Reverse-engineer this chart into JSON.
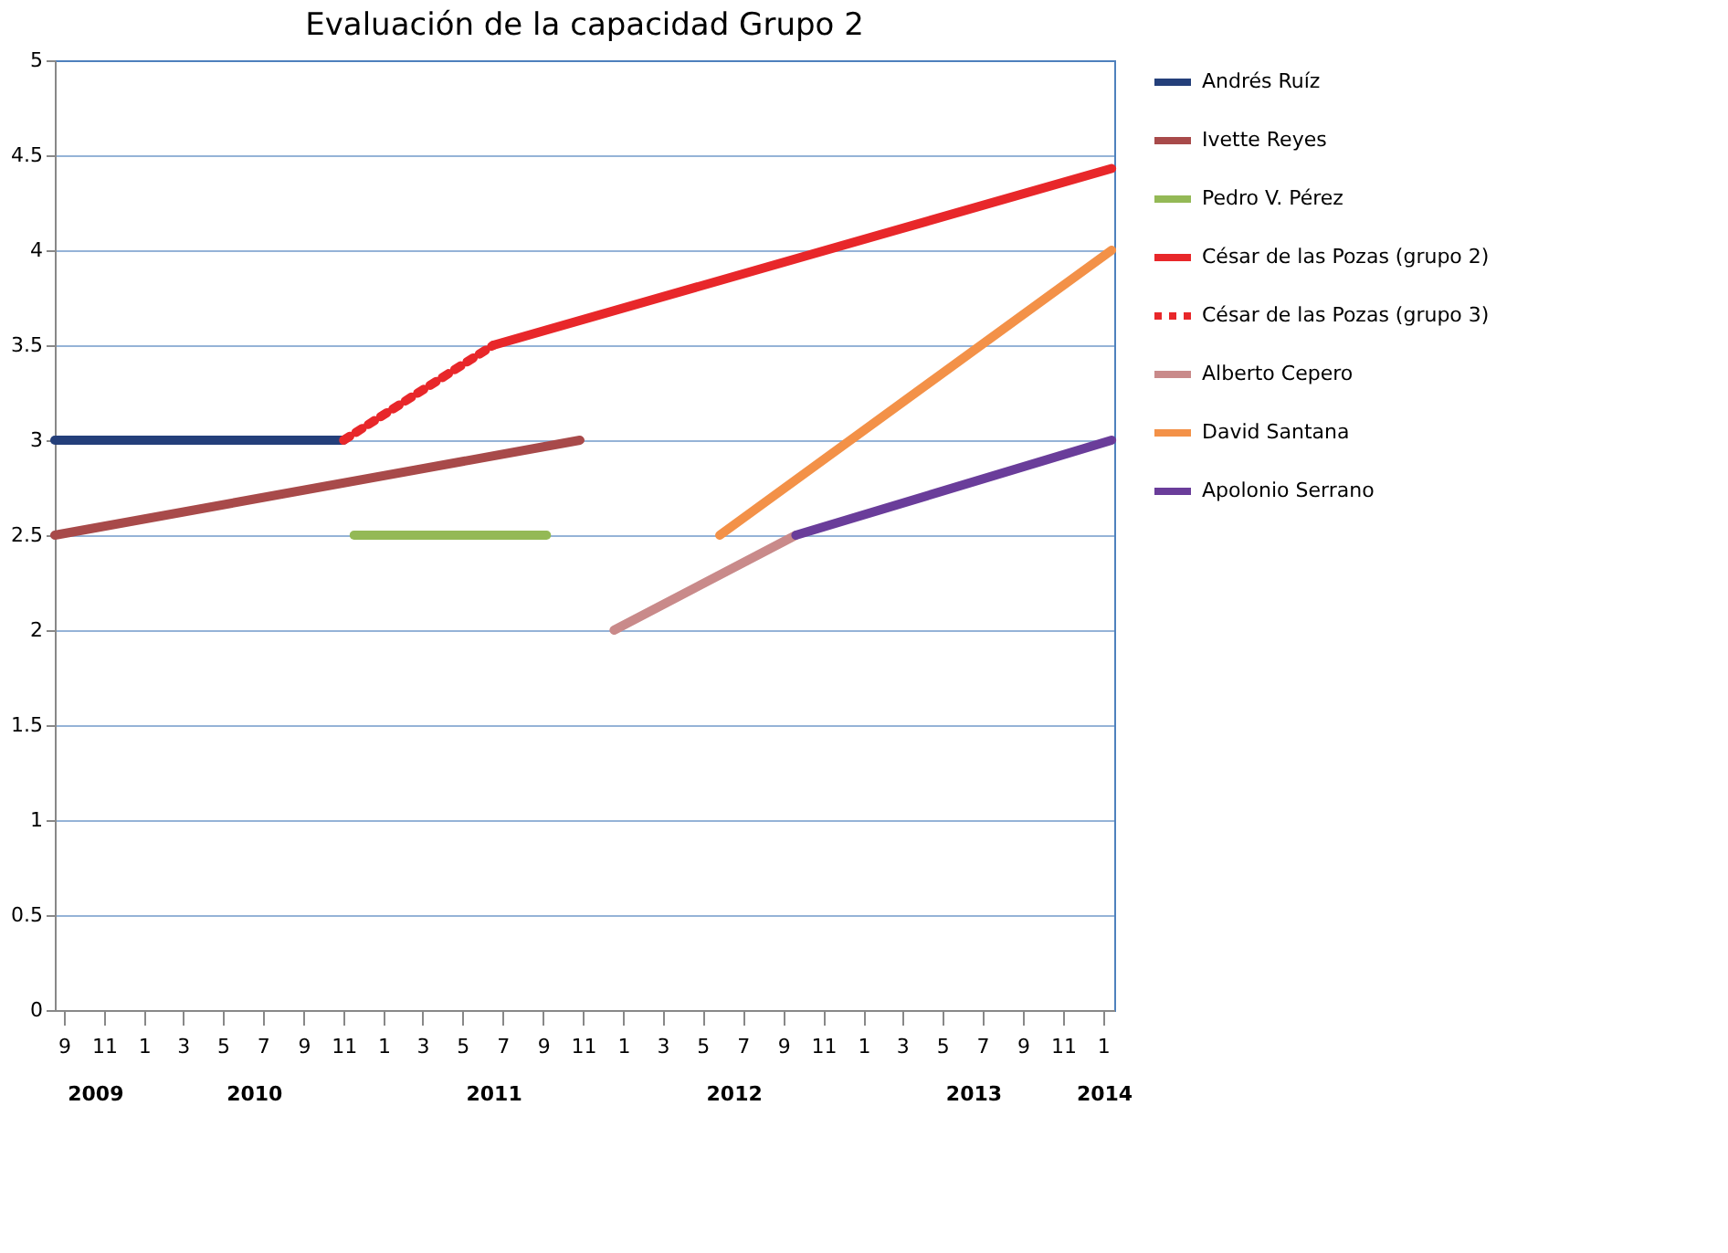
{
  "chart_data": {
    "type": "line",
    "title": "Evaluación de la capacidad Grupo 2",
    "xlim": [
      "2009-09-01",
      "2014-02-01"
    ],
    "xticks": [
      {
        "value": "2009-09-15",
        "label": "9"
      },
      {
        "value": "2009-11-15",
        "label": "11"
      },
      {
        "value": "2010-01-15",
        "label": "1"
      },
      {
        "value": "2010-03-15",
        "label": "3"
      },
      {
        "value": "2010-05-15",
        "label": "5"
      },
      {
        "value": "2010-07-15",
        "label": "7"
      },
      {
        "value": "2010-09-15",
        "label": "9"
      },
      {
        "value": "2010-11-15",
        "label": "11"
      },
      {
        "value": "2011-01-15",
        "label": "1"
      },
      {
        "value": "2011-03-15",
        "label": "3"
      },
      {
        "value": "2011-05-15",
        "label": "5"
      },
      {
        "value": "2011-07-15",
        "label": "7"
      },
      {
        "value": "2011-09-15",
        "label": "9"
      },
      {
        "value": "2011-11-15",
        "label": "11"
      },
      {
        "value": "2012-01-15",
        "label": "1"
      },
      {
        "value": "2012-03-15",
        "label": "3"
      },
      {
        "value": "2012-05-15",
        "label": "5"
      },
      {
        "value": "2012-07-15",
        "label": "7"
      },
      {
        "value": "2012-09-15",
        "label": "9"
      },
      {
        "value": "2012-11-15",
        "label": "11"
      },
      {
        "value": "2013-01-15",
        "label": "1"
      },
      {
        "value": "2013-03-15",
        "label": "3"
      },
      {
        "value": "2013-05-15",
        "label": "5"
      },
      {
        "value": "2013-07-15",
        "label": "7"
      },
      {
        "value": "2013-09-15",
        "label": "9"
      },
      {
        "value": "2013-11-15",
        "label": "11"
      },
      {
        "value": "2014-01-15",
        "label": "1"
      }
    ],
    "x2lim": [
      "2009-09-01",
      "2014-02-01"
    ],
    "x2ticks": [
      {
        "value": "2009-11-01",
        "label": "2009"
      },
      {
        "value": "2010-07-01",
        "label": "2010"
      },
      {
        "value": "2011-07-01",
        "label": "2011"
      },
      {
        "value": "2012-07-01",
        "label": "2012"
      },
      {
        "value": "2013-07-01",
        "label": "2013"
      },
      {
        "value": "2014-01-16",
        "label": "2014"
      }
    ],
    "ylim": [
      0,
      5
    ],
    "yticks": [
      0,
      0.5,
      1,
      1.5,
      2,
      2.5,
      3,
      3.5,
      4,
      4.5,
      5
    ],
    "grid": "y",
    "legend": "right",
    "marker": "none",
    "series": [
      {
        "name": "Andrés Ruíz",
        "color": "#243f7a",
        "line_style": "solid",
        "x": [
          "2009-09-01",
          "2010-11-15"
        ],
        "values": [
          3.0,
          3.0
        ]
      },
      {
        "name": "Ivette Reyes",
        "color": "#a84a4a",
        "line_style": "solid",
        "x": [
          "2009-09-01",
          "2011-11-10"
        ],
        "values": [
          2.5,
          3.0
        ]
      },
      {
        "name": "Pedro V. Pérez",
        "color": "#94b956",
        "line_style": "solid",
        "x": [
          "2010-12-01",
          "2011-09-20"
        ],
        "values": [
          2.5,
          2.5
        ]
      },
      {
        "name": "César de las Pozas (grupo  2)",
        "color": "#e8272a",
        "line_style": "solid",
        "x": [
          "2011-07-01",
          "2014-01-28"
        ],
        "values": [
          3.5,
          4.43
        ]
      },
      {
        "name": "César de las Pozas (grupo  3)",
        "color": "#e8272a",
        "line_style": "dotted",
        "x": [
          "2010-11-15",
          "2011-07-01"
        ],
        "values": [
          3.0,
          3.5
        ]
      },
      {
        "name": "Alberto Cepero",
        "color": "#c98a8a",
        "line_style": "solid",
        "x": [
          "2012-01-01",
          "2012-10-04"
        ],
        "values": [
          2.0,
          2.5
        ]
      },
      {
        "name": "David Santana",
        "color": "#f39148",
        "line_style": "solid",
        "x": [
          "2012-06-10",
          "2014-01-28"
        ],
        "values": [
          2.5,
          4.0
        ]
      },
      {
        "name": "Apolonio Serrano",
        "color": "#6a3d9a",
        "line_style": "solid",
        "x": [
          "2012-10-04",
          "2014-01-28"
        ],
        "values": [
          2.5,
          3.0
        ]
      }
    ]
  }
}
